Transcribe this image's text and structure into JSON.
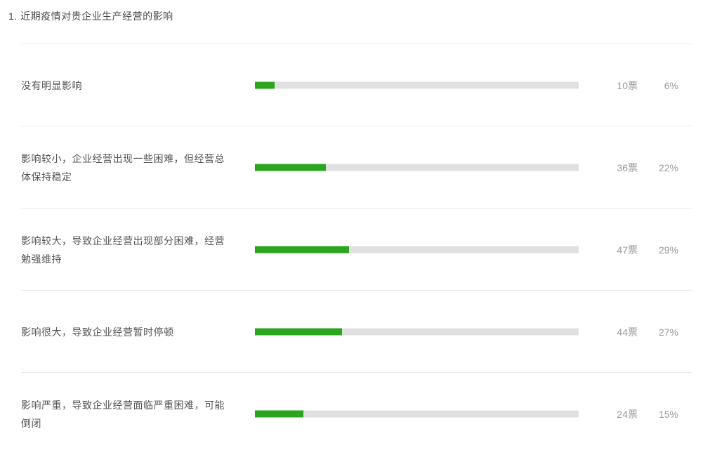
{
  "page": {
    "title": "1. 近期疫情对贵企业生产经营的影响"
  },
  "chart_data": {
    "type": "bar",
    "orientation": "horizontal",
    "title": "1. 近期疫情对贵企业生产经营的影响",
    "categories": [
      "没有明显影响",
      "影响较小，企业经营出现一些困难，但经营总体保持稳定",
      "影响较大，导致企业经营出现部分困难，经营勉强维持",
      "影响很大，导致企业经营暂时停顿",
      "影响严重，导致企业经营面临严重困难，可能倒闭"
    ],
    "values": [
      10,
      36,
      47,
      44,
      24
    ],
    "percentages": [
      6,
      22,
      29,
      27,
      15
    ],
    "value_unit": "票",
    "xlim": [
      0,
      100
    ],
    "grid": false,
    "legend": "none"
  },
  "rows": [
    {
      "label": "没有明显影响",
      "votes": "10票",
      "percent": "6%",
      "bar_width": "6%"
    },
    {
      "label": "影响较小，企业经营出现一些困难，但经营总体保持稳定",
      "votes": "36票",
      "percent": "22%",
      "bar_width": "22%"
    },
    {
      "label": "影响较大，导致企业经营出现部分困难，经营勉强维持",
      "votes": "47票",
      "percent": "29%",
      "bar_width": "29%"
    },
    {
      "label": "影响很大，导致企业经营暂时停顿",
      "votes": "44票",
      "percent": "27%",
      "bar_width": "27%"
    },
    {
      "label": "影响严重，导致企业经营面临严重困难，可能倒闭",
      "votes": "24票",
      "percent": "15%",
      "bar_width": "15%"
    }
  ],
  "colors": {
    "bar_fill": "#2ca51e",
    "bar_track": "#e0e0e0",
    "separator": "#ebebeb",
    "title_text": "#4a4a4a",
    "label_text": "#545454",
    "value_text": "#999999",
    "background": "#ffffff"
  }
}
